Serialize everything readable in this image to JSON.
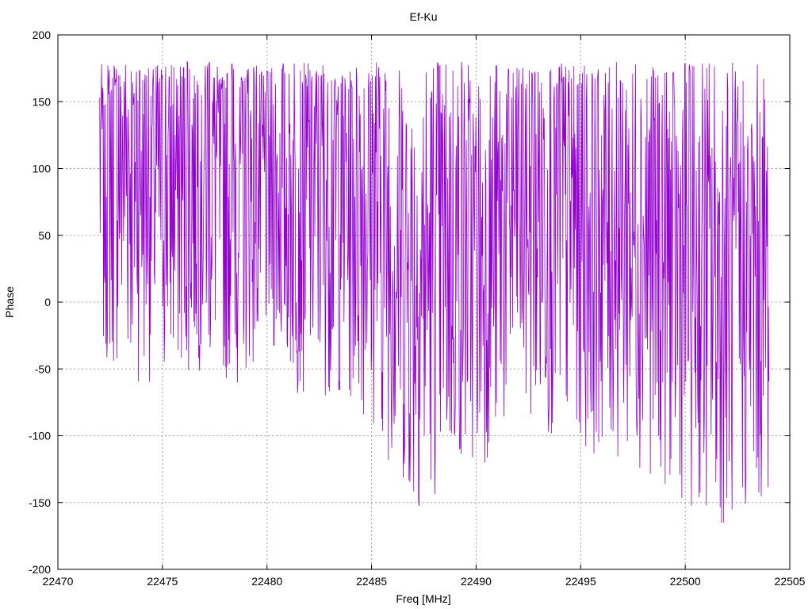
{
  "chart_data": {
    "type": "line",
    "title": "Ef-Ku",
    "xlabel": "Freq [MHz]",
    "ylabel": "Phase",
    "xlim": [
      22470,
      22505
    ],
    "ylim": [
      -200,
      200
    ],
    "xticks": [
      22470,
      22475,
      22480,
      22485,
      22490,
      22495,
      22500,
      22505
    ],
    "yticks": [
      -200,
      -150,
      -100,
      -50,
      0,
      50,
      100,
      150,
      200
    ],
    "grid": true,
    "legend": "none",
    "series": [
      {
        "color": "#9400d3",
        "x_range": [
          22472,
          22504
        ],
        "envelope": [
          {
            "x": 22472.0,
            "y": 120,
            "spread": 170
          },
          {
            "x": 22474.0,
            "y": 110,
            "spread": 170
          },
          {
            "x": 22475.5,
            "y": 90,
            "spread": 150
          },
          {
            "x": 22477.0,
            "y": 110,
            "spread": 160
          },
          {
            "x": 22478.5,
            "y": 95,
            "spread": 160
          },
          {
            "x": 22480.0,
            "y": 85,
            "spread": 120
          },
          {
            "x": 22481.5,
            "y": 80,
            "spread": 150
          },
          {
            "x": 22483.0,
            "y": 90,
            "spread": 160
          },
          {
            "x": 22485.0,
            "y": 80,
            "spread": 170
          },
          {
            "x": 22487.0,
            "y": 20,
            "spread": 180
          },
          {
            "x": 22489.0,
            "y": 40,
            "spread": 170
          },
          {
            "x": 22490.5,
            "y": 30,
            "spread": 150
          },
          {
            "x": 22492.0,
            "y": 80,
            "spread": 170
          },
          {
            "x": 22494.0,
            "y": 70,
            "spread": 175
          },
          {
            "x": 22496.0,
            "y": 60,
            "spread": 175
          },
          {
            "x": 22498.0,
            "y": 50,
            "spread": 175
          },
          {
            "x": 22500.0,
            "y": 30,
            "spread": 180
          },
          {
            "x": 22502.0,
            "y": 10,
            "spread": 180
          },
          {
            "x": 22504.0,
            "y": 20,
            "spread": 170
          }
        ]
      }
    ]
  }
}
